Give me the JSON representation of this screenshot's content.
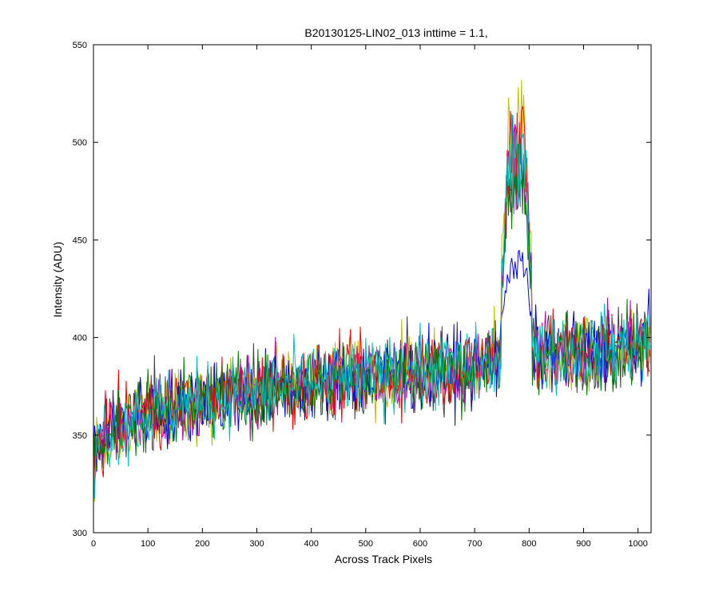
{
  "chart_data": {
    "type": "line",
    "title": "B20130125-LIN02_013 inttime = 1.1,",
    "xlabel": "Across Track Pixels",
    "ylabel": "Intensity (ADU)",
    "xlim": [
      0,
      1024
    ],
    "ylim": [
      300,
      550
    ],
    "x_ticks": [
      0,
      100,
      200,
      300,
      400,
      500,
      600,
      700,
      800,
      900,
      1000
    ],
    "y_ticks": [
      300,
      350,
      400,
      450,
      500,
      550
    ],
    "x_tick_labels": [
      "0",
      "100",
      "200",
      "300",
      "400",
      "500",
      "600",
      "700",
      "800",
      "900",
      "1000"
    ],
    "y_tick_labels": [
      "300",
      "350",
      "400",
      "450",
      "500",
      "550"
    ],
    "grid": false,
    "legend": "none",
    "series_colors": [
      "#0000ff",
      "#008000",
      "#ff0000",
      "#00bfbf",
      "#bf00bf",
      "#bfbf00",
      "#404040"
    ],
    "trend_points": {
      "x": [
        0,
        100,
        200,
        300,
        400,
        500,
        600,
        700,
        750,
        800,
        850,
        900,
        1000,
        1024
      ],
      "y": [
        348,
        362,
        368,
        372,
        377,
        380,
        383,
        385,
        390,
        393,
        392,
        393,
        397,
        397
      ]
    },
    "spread_adu": 18,
    "peak": {
      "x_range": [
        750,
        805
      ],
      "max_values": [
        445,
        500,
        525,
        520,
        515,
        538,
        510
      ],
      "note_max": 538
    }
  }
}
